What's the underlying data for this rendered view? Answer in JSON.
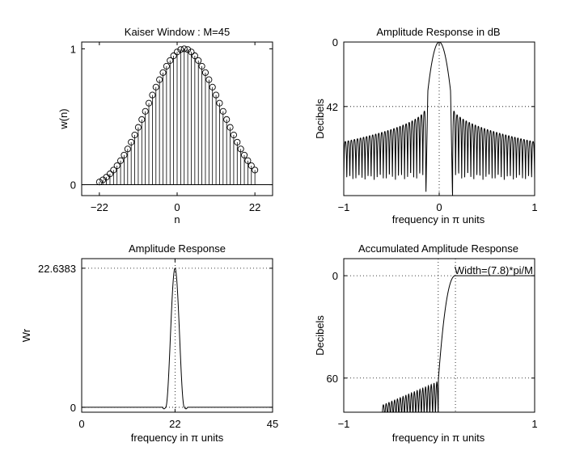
{
  "figure": {
    "background": "#ffffff",
    "line_color": "#000000",
    "grid_style": "dotted"
  },
  "chart_data": [
    {
      "type": "stem",
      "title": "Kaiser Window : M=45",
      "xlabel": "n",
      "ylabel": "w(n)",
      "xlim": [
        -27,
        27
      ],
      "ylim": [
        -0.08,
        1.05
      ],
      "xticks": [
        -22,
        0,
        22
      ],
      "xtick_labels": [
        "−22",
        "0",
        "22"
      ],
      "yticks": [
        0,
        1
      ],
      "ytick_labels": [
        "0",
        "1"
      ],
      "grid": false,
      "marker": "circle",
      "n": [
        -22,
        -21,
        -20,
        -19,
        -18,
        -17,
        -16,
        -15,
        -14,
        -13,
        -12,
        -11,
        -10,
        -9,
        -8,
        -7,
        -6,
        -5,
        -4,
        -3,
        -2,
        -1,
        0,
        1,
        2,
        3,
        4,
        5,
        6,
        7,
        8,
        9,
        10,
        11,
        12,
        13,
        14,
        15,
        16,
        17,
        18,
        19,
        20,
        21,
        22
      ],
      "values": [
        0.02,
        0.036,
        0.056,
        0.08,
        0.108,
        0.14,
        0.177,
        0.218,
        0.263,
        0.313,
        0.366,
        0.422,
        0.48,
        0.54,
        0.6,
        0.66,
        0.718,
        0.773,
        0.825,
        0.872,
        0.914,
        0.949,
        0.977,
        0.995,
        1.0,
        0.995,
        0.977,
        0.949,
        0.914,
        0.872,
        0.825,
        0.773,
        0.718,
        0.66,
        0.6,
        0.54,
        0.48,
        0.422,
        0.366,
        0.313,
        0.263,
        0.218,
        0.177,
        0.14,
        0.108
      ]
    },
    {
      "type": "line",
      "title": "Amplitude Response in dB",
      "xlabel": "frequency in π units",
      "ylabel": "Decibels",
      "xlim": [
        -1,
        1
      ],
      "ylim": [
        0,
        100
      ],
      "y_inverted": true,
      "xticks": [
        -1,
        0,
        1
      ],
      "xtick_labels": [
        "−1",
        "0",
        "1"
      ],
      "yticks": [
        0,
        42
      ],
      "ytick_labels": [
        "0",
        "42"
      ],
      "grid": true,
      "mainlobe_halfwidth": 0.14,
      "sidelobe_level_near": 42,
      "sidelobe_level_far": 65,
      "floor": 90,
      "sidelobe_count_each_side": 27
    },
    {
      "type": "line",
      "title": "Amplitude Response",
      "xlabel": "frequency in π units",
      "ylabel": "Wr",
      "xlim": [
        0,
        45
      ],
      "ylim": [
        -0.8,
        24.2
      ],
      "xticks": [
        0,
        22,
        45
      ],
      "xtick_labels": [
        "0",
        "22",
        "45"
      ],
      "yticks": [
        0,
        22.6383
      ],
      "ytick_labels": [
        "0",
        "22.6383"
      ],
      "grid": true,
      "peak_x": 22,
      "peak_value": 22.6383,
      "peak_halfwidth": 2.2
    },
    {
      "type": "line",
      "title": "Accumulated Amplitude Response",
      "xlabel": "frequency in π units",
      "ylabel": "Decibels",
      "xlim": [
        -1,
        1
      ],
      "ylim": [
        -10,
        80
      ],
      "y_inverted": true,
      "xticks": [
        -1,
        1
      ],
      "xtick_labels": [
        "−1",
        "1"
      ],
      "yticks": [
        0,
        60
      ],
      "ytick_labels": [
        "0",
        "60"
      ],
      "grid": true,
      "annotation": "Width=(7.8)*pi/M",
      "transition_start": -0.01,
      "transition_end": 0.17,
      "ripple_start": -0.6,
      "ripple_level_far": 76,
      "ripple_level_near": 62,
      "floor": 80
    }
  ]
}
